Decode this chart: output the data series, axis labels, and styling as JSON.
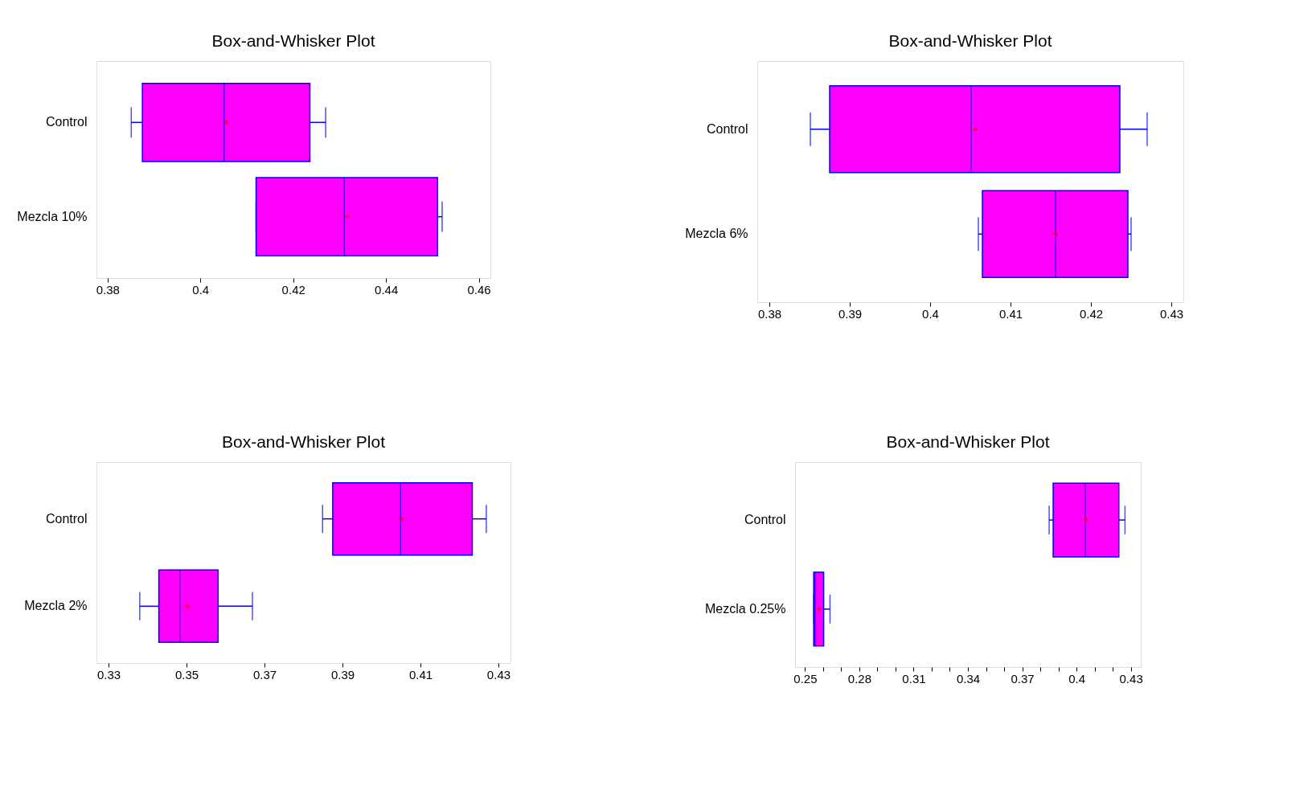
{
  "chart_data": [
    {
      "type": "box",
      "title": "Box-and-Whisker Plot",
      "orientation": "horizontal",
      "color": "#ff00ff",
      "categories": [
        "Control",
        "Mezcla 10%"
      ],
      "boxes": [
        {
          "low": 0.3851,
          "q1": 0.3875,
          "median": 0.4051,
          "q3": 0.4236,
          "high": 0.427,
          "mean": 0.4056
        },
        {
          "low": 0.412,
          "q1": 0.412,
          "median": 0.431,
          "q3": 0.4511,
          "high": 0.4521,
          "mean": 0.4316
        }
      ],
      "xlim": [
        0.3776,
        0.4625
      ],
      "xticks": [
        0.38,
        0.4,
        0.42,
        0.44,
        0.46
      ],
      "grid": false
    },
    {
      "type": "box",
      "title": "Box-and-Whisker Plot",
      "orientation": "horizontal",
      "color": "#ff00ff",
      "categories": [
        "Control",
        "Mezcla 6%"
      ],
      "boxes": [
        {
          "low": 0.3851,
          "q1": 0.3875,
          "median": 0.4051,
          "q3": 0.4236,
          "high": 0.427,
          "mean": 0.4056
        },
        {
          "low": 0.406,
          "q1": 0.4065,
          "median": 0.4156,
          "q3": 0.4246,
          "high": 0.425,
          "mean": 0.4156
        }
      ],
      "xlim": [
        0.3785,
        0.4315
      ],
      "xticks": [
        0.38,
        0.39,
        0.4,
        0.41,
        0.42,
        0.43
      ],
      "grid": false
    },
    {
      "type": "box",
      "title": "Box-and-Whisker Plot",
      "orientation": "horizontal",
      "color": "#ff00ff",
      "categories": [
        "Control",
        "Mezcla 2%"
      ],
      "boxes": [
        {
          "low": 0.3849,
          "q1": 0.3875,
          "median": 0.4049,
          "q3": 0.4233,
          "high": 0.4269,
          "mean": 0.4052
        },
        {
          "low": 0.338,
          "q1": 0.3429,
          "median": 0.3483,
          "q3": 0.3581,
          "high": 0.3669,
          "mean": 0.3502
        }
      ],
      "xlim": [
        0.3269,
        0.4331
      ],
      "xticks": [
        0.33,
        0.35,
        0.37,
        0.39,
        0.41,
        0.43
      ],
      "grid": false
    },
    {
      "type": "box",
      "title": "Box-and-Whisker Plot",
      "orientation": "horizontal",
      "color": "#ff00ff",
      "categories": [
        "Control",
        "Mezcla 0.25%"
      ],
      "boxes": [
        {
          "low": 0.3849,
          "q1": 0.3871,
          "median": 0.4048,
          "q3": 0.4234,
          "high": 0.4268,
          "mean": 0.4052
        },
        {
          "low": 0.2548,
          "q1": 0.2548,
          "median": 0.2555,
          "q3": 0.2603,
          "high": 0.2638,
          "mean": 0.2579
        }
      ],
      "xlim": [
        0.2445,
        0.4355
      ],
      "xticks": [
        0.25,
        {
          "value": 0.26,
          "label": null
        },
        {
          "value": 0.27,
          "label": null
        },
        0.28,
        {
          "value": 0.29,
          "label": null
        },
        {
          "value": 0.3,
          "label": null
        },
        0.31,
        {
          "value": 0.32,
          "label": null
        },
        {
          "value": 0.33,
          "label": null
        },
        0.34,
        {
          "value": 0.35,
          "label": null
        },
        {
          "value": 0.36,
          "label": null
        },
        0.37,
        {
          "value": 0.38,
          "label": null
        },
        {
          "value": 0.39,
          "label": null
        },
        0.4,
        {
          "value": 0.41,
          "label": null
        },
        {
          "value": 0.42,
          "label": null
        },
        0.43
      ],
      "grid": false
    }
  ]
}
